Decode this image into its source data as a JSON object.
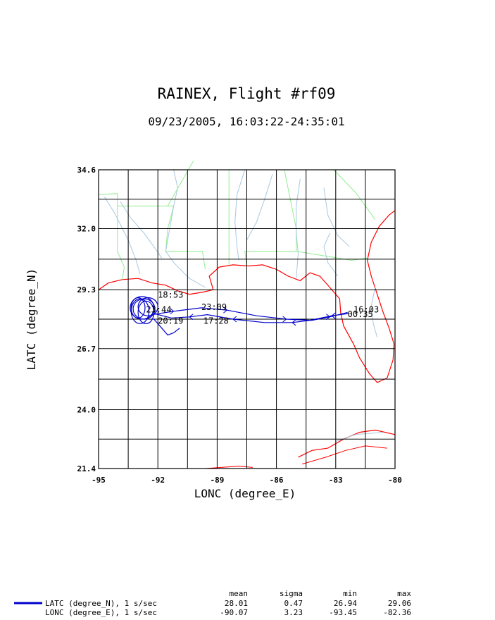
{
  "chart_data": {
    "type": "line",
    "title": "RAINEX, Flight #rf09",
    "subtitle": "09/23/2005, 16:03:22-24:35:01",
    "xlabel": "LONC (degree_E)",
    "ylabel": "LATC (degree_N)",
    "xlim": [
      -95,
      -80
    ],
    "ylim": [
      21.4,
      34.6
    ],
    "x_ticks": [
      "-95",
      "-92",
      "-89",
      "-86",
      "-83",
      "-80"
    ],
    "x_tick_values": [
      -95,
      -92,
      -89,
      -86,
      -83,
      -80
    ],
    "y_ticks": [
      "34.6",
      "32.0",
      "29.3",
      "26.7",
      "24.0",
      "21.4"
    ],
    "y_tick_values": [
      34.6,
      32.0,
      29.3,
      26.7,
      24.0,
      21.4
    ],
    "grid": true,
    "colors": {
      "track": "#0000cc",
      "coastline": "#ff0000",
      "rivers": "#a8c8e0",
      "state_borders": "#90ee90",
      "grid": "#000000"
    },
    "series": [
      {
        "name": "LATC (degree_N), 1 s/sec",
        "stats": {
          "mean": "28.01",
          "sigma": "0.47",
          "min": "26.94",
          "max": "29.06"
        }
      },
      {
        "name": "LONC (degree_E), 1 s/sec",
        "stats": {
          "mean": "-90.07",
          "sigma": "3.23",
          "min": "-93.45",
          "max": "-82.36"
        }
      }
    ],
    "stats_headers": [
      "mean",
      "sigma",
      "min",
      "max"
    ],
    "track": {
      "outbound": [
        [
          -82.36,
          28.25
        ],
        [
          -83.2,
          28.15
        ],
        [
          -84.3,
          27.95
        ],
        [
          -85.2,
          27.85
        ],
        [
          -86.6,
          27.85
        ],
        [
          -88.2,
          28.0
        ],
        [
          -89.5,
          28.2
        ],
        [
          -90.4,
          28.1
        ],
        [
          -91.3,
          28.05
        ],
        [
          -92.2,
          28.25
        ]
      ],
      "return": [
        [
          -92.3,
          28.2
        ],
        [
          -91.2,
          28.35
        ],
        [
          -89.8,
          28.5
        ],
        [
          -88.5,
          28.4
        ],
        [
          -87.0,
          28.15
        ],
        [
          -85.5,
          28.0
        ],
        [
          -84.2,
          27.95
        ],
        [
          -83.3,
          28.1
        ],
        [
          -82.4,
          28.3
        ]
      ],
      "loops": [
        {
          "cx": -92.7,
          "cy": 28.45,
          "rx": 0.55,
          "ry": 0.45
        },
        {
          "cx": -92.9,
          "cy": 28.35,
          "rx": 0.45,
          "ry": 0.55
        },
        {
          "cx": -92.5,
          "cy": 28.55,
          "rx": 0.5,
          "ry": 0.4
        },
        {
          "cx": -92.8,
          "cy": 28.5,
          "rx": 0.6,
          "ry": 0.5
        },
        {
          "cx": -92.6,
          "cy": 28.3,
          "rx": 0.4,
          "ry": 0.5
        },
        {
          "cx": -93.0,
          "cy": 28.5,
          "rx": 0.35,
          "ry": 0.45
        }
      ],
      "tail": [
        [
          -92.2,
          28.0
        ],
        [
          -91.8,
          27.6
        ],
        [
          -91.5,
          27.3
        ],
        [
          -91.2,
          27.4
        ],
        [
          -90.9,
          27.6
        ]
      ]
    },
    "annotations": [
      {
        "text": "18:53",
        "x": -92.0,
        "y": 28.95
      },
      {
        "text": "23:09",
        "x": -89.8,
        "y": 28.4
      },
      {
        "text": "23:44",
        "x": -92.6,
        "y": 28.3
      },
      {
        "text": "20:19",
        "x": -92.0,
        "y": 27.8
      },
      {
        "text": "17:28",
        "x": -89.7,
        "y": 27.8
      },
      {
        "text": "16:03",
        "x": -82.1,
        "y": 28.3
      },
      {
        "text": "00:35",
        "x": -82.4,
        "y": 28.1
      }
    ]
  }
}
